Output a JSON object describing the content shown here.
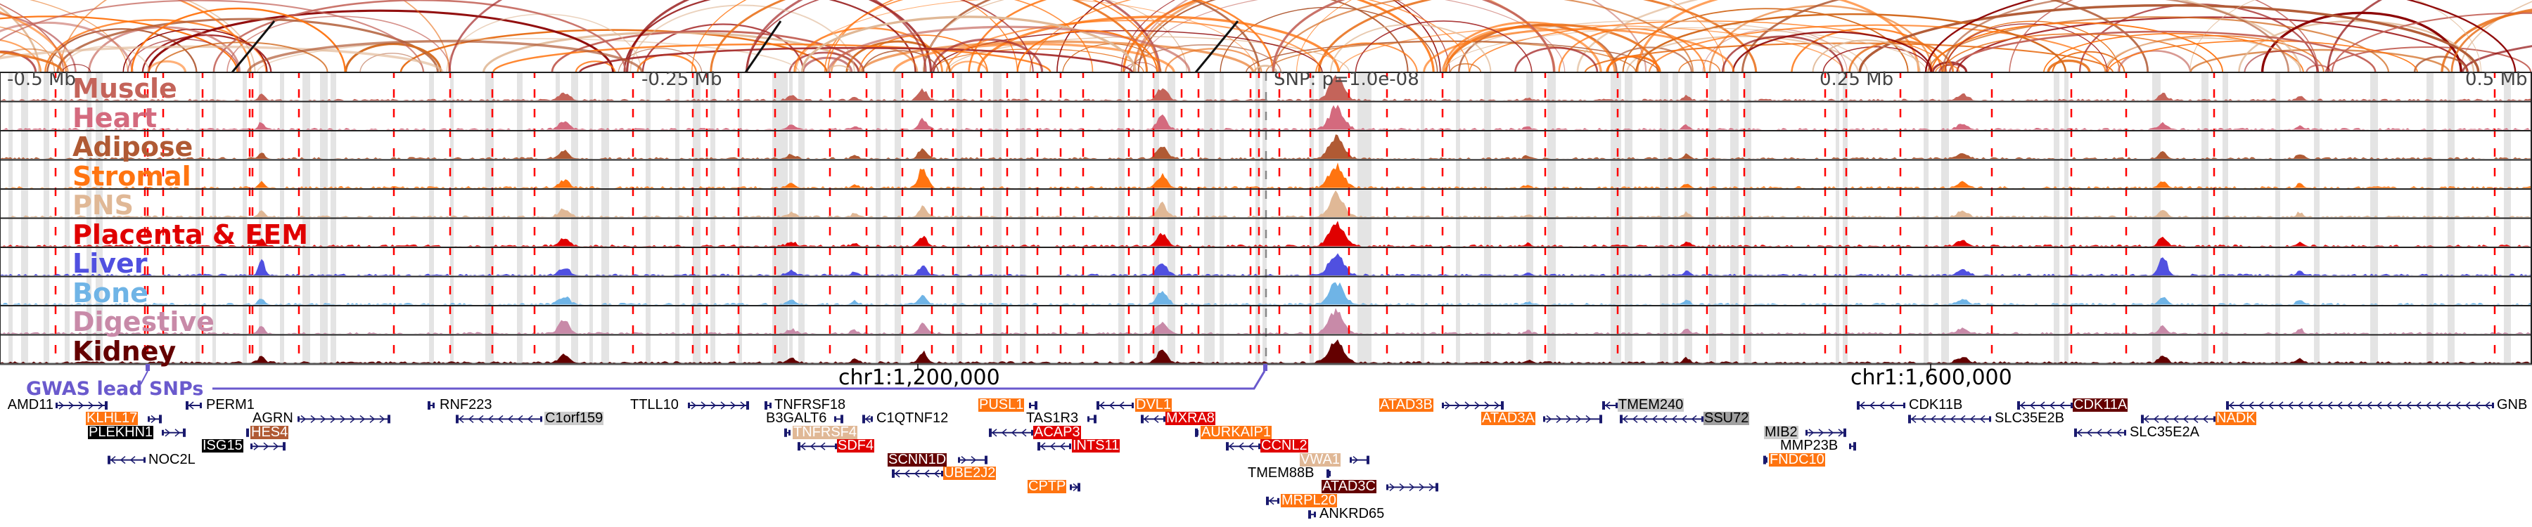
{
  "axis": {
    "left": "-0.5 Mb",
    "left_mid": "-0.25 Mb",
    "center": "SNP: p=1.0e-08",
    "right_mid": "0.25 Mb",
    "right": "0.5 Mb"
  },
  "tracks": [
    {
      "name": "Muscle",
      "color": "#c4645a"
    },
    {
      "name": "Heart",
      "color": "#d46a7e"
    },
    {
      "name": "Adipose",
      "color": "#b05a34"
    },
    {
      "name": "Stromal",
      "color": "#ff7410"
    },
    {
      "name": "PNS",
      "color": "#e0b896"
    },
    {
      "name": "Placenta & EEM",
      "color": "#e00000"
    },
    {
      "name": "Liver",
      "color": "#5050e0"
    },
    {
      "name": "Bone",
      "color": "#6fb4e6"
    },
    {
      "name": "Digestive",
      "color": "#c88aa8"
    },
    {
      "name": "Kidney",
      "color": "#640000"
    }
  ],
  "gwas_label": "GWAS lead SNPs",
  "coordinates": [
    "chr1:1,200,000",
    "chr1:1,600,000"
  ],
  "gene_styles": {
    "plain": {
      "bg": "transparent",
      "fg": "#000000"
    },
    "orange": {
      "bg": "#ff7410",
      "fg": "#ffffff"
    },
    "red": {
      "bg": "#e00000",
      "fg": "#ffffff"
    },
    "darkred": {
      "bg": "#640000",
      "fg": "#ffffff"
    },
    "sienna": {
      "bg": "#b05a34",
      "fg": "#ffffff"
    },
    "tan": {
      "bg": "#e0b896",
      "fg": "#ffffff"
    },
    "black": {
      "bg": "#000000",
      "fg": "#ffffff"
    },
    "lightgray": {
      "bg": "#cccccc",
      "fg": "#000000"
    },
    "gray": {
      "bg": "#a0a0a0",
      "fg": "#000000"
    }
  },
  "genes": [
    {
      "name": "AMD11",
      "style": "plain",
      "strand": "+"
    },
    {
      "name": "KLHL17",
      "style": "orange",
      "strand": "+"
    },
    {
      "name": "PLEKHN1",
      "style": "black",
      "strand": "+"
    },
    {
      "name": "ISG15",
      "style": "black",
      "strand": "+"
    },
    {
      "name": "NOC2L",
      "style": "plain",
      "strand": "-"
    },
    {
      "name": "PERM1",
      "style": "plain",
      "strand": "-"
    },
    {
      "name": "AGRN",
      "style": "plain",
      "strand": "+"
    },
    {
      "name": "HES4",
      "style": "sienna",
      "strand": "-"
    },
    {
      "name": "RNF223",
      "style": "plain",
      "strand": "-"
    },
    {
      "name": "C1orf159",
      "style": "lightgray",
      "strand": "-"
    },
    {
      "name": "TTLL10",
      "style": "plain",
      "strand": "+"
    },
    {
      "name": "TNFRSF18",
      "style": "plain",
      "strand": "-"
    },
    {
      "name": "B3GALT6",
      "style": "plain",
      "strand": "+"
    },
    {
      "name": "C1QTNF12",
      "style": "plain",
      "strand": "-"
    },
    {
      "name": "TNFRSF4",
      "style": "tan",
      "strand": "-"
    },
    {
      "name": "SDF4",
      "style": "red",
      "strand": "-"
    },
    {
      "name": "SCNN1D",
      "style": "darkred",
      "strand": "+"
    },
    {
      "name": "UBE2J2",
      "style": "orange",
      "strand": "-"
    },
    {
      "name": "PUSL1",
      "style": "orange",
      "strand": "+"
    },
    {
      "name": "TAS1R3",
      "style": "plain",
      "strand": "+"
    },
    {
      "name": "ACAP3",
      "style": "red",
      "strand": "-"
    },
    {
      "name": "INTS11",
      "style": "red",
      "strand": "-"
    },
    {
      "name": "CPTP",
      "style": "orange",
      "strand": "+"
    },
    {
      "name": "DVL1",
      "style": "orange",
      "strand": "-"
    },
    {
      "name": "MXRA8",
      "style": "red",
      "strand": "-"
    },
    {
      "name": "AURKAIP1",
      "style": "orange",
      "strand": "-"
    },
    {
      "name": "CCNL2",
      "style": "red",
      "strand": "-"
    },
    {
      "name": "VWA1",
      "style": "tan",
      "strand": "+"
    },
    {
      "name": "TMEM88B",
      "style": "plain",
      "strand": "-"
    },
    {
      "name": "ATAD3C",
      "style": "darkred",
      "strand": "+"
    },
    {
      "name": "MRPL20",
      "style": "orange",
      "strand": "-"
    },
    {
      "name": "ANKRD65",
      "style": "plain",
      "strand": "-"
    },
    {
      "name": "ATAD3B",
      "style": "orange",
      "strand": "+"
    },
    {
      "name": "ATAD3A",
      "style": "orange",
      "strand": "+"
    },
    {
      "name": "TMEM240",
      "style": "lightgray",
      "strand": "-"
    },
    {
      "name": "SSU72",
      "style": "gray",
      "strand": "-"
    },
    {
      "name": "MIB2",
      "style": "lightgray",
      "strand": "+"
    },
    {
      "name": "MMP23B",
      "style": "plain",
      "strand": "+"
    },
    {
      "name": "FNDC10",
      "style": "orange",
      "strand": "-"
    },
    {
      "name": "CDK11B",
      "style": "plain",
      "strand": "-"
    },
    {
      "name": "SLC35E2B",
      "style": "plain",
      "strand": "-"
    },
    {
      "name": "CDK11A",
      "style": "darkred",
      "strand": "-"
    },
    {
      "name": "SLC35E2A",
      "style": "plain",
      "strand": "-"
    },
    {
      "name": "NADK",
      "style": "orange",
      "strand": "-"
    },
    {
      "name": "GNB",
      "style": "plain",
      "strand": "-"
    }
  ],
  "arc_colors": [
    "#ff7410",
    "#ff7410",
    "#e8701a",
    "#c4645a",
    "#b05a34",
    "#d2691e",
    "#a52a2a",
    "#e0b896",
    "#8b0000"
  ]
}
